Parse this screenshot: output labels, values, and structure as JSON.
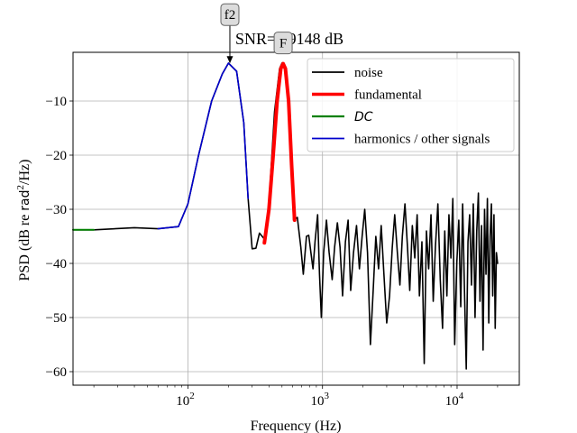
{
  "chart_data": {
    "type": "line",
    "title": "SNR=6.9148 dB",
    "xlabel": "Frequency (Hz)",
    "ylabel_prefix": "PSD (dB re ",
    "ylabel_unit": "rad",
    "ylabel_exp": "2",
    "ylabel_suffix": "/Hz)",
    "x_scale": "log",
    "xlim": [
      14,
      29000
    ],
    "ylim": [
      -62.5,
      -1
    ],
    "grid": true,
    "legend_position": "top-right",
    "x_ticks": [
      {
        "value": 100,
        "base": "10",
        "exp": "2"
      },
      {
        "value": 1000,
        "base": "10",
        "exp": "3"
      },
      {
        "value": 10000,
        "base": "10",
        "exp": "4"
      }
    ],
    "y_ticks": [
      {
        "value": -10,
        "label": "−10"
      },
      {
        "value": -20,
        "label": "−20"
      },
      {
        "value": -30,
        "label": "−30"
      },
      {
        "value": -40,
        "label": "−40"
      },
      {
        "value": -50,
        "label": "−50"
      },
      {
        "value": -60,
        "label": "−60"
      }
    ],
    "series": [
      {
        "name": "noise",
        "color": "#000000",
        "width": 1.6,
        "points": [
          [
            14,
            -33.8
          ],
          [
            20,
            -33.8
          ],
          [
            40,
            -33.4
          ],
          [
            60,
            -33.6
          ],
          [
            85,
            -33.2
          ],
          [
            100,
            -29
          ],
          [
            120,
            -20
          ],
          [
            150,
            -10
          ],
          [
            180,
            -5
          ],
          [
            200,
            -3
          ],
          [
            230,
            -4.5
          ],
          [
            260,
            -14
          ],
          [
            280,
            -28
          ],
          [
            300,
            -37.3
          ],
          [
            320,
            -37.2
          ],
          [
            340,
            -34.4
          ],
          [
            370,
            -35.5
          ],
          [
            400,
            -29
          ],
          [
            440,
            -12
          ],
          [
            480,
            -4
          ],
          [
            500,
            -3
          ],
          [
            530,
            -4.5
          ],
          [
            570,
            -14
          ],
          [
            610,
            -32
          ],
          [
            650,
            -31.5
          ],
          [
            690,
            -37
          ],
          [
            720,
            -42
          ],
          [
            760,
            -35
          ],
          [
            790,
            -34.8
          ],
          [
            820,
            -38
          ],
          [
            850,
            -41
          ],
          [
            880,
            -36
          ],
          [
            920,
            -31
          ],
          [
            950,
            -42
          ],
          [
            980,
            -50
          ],
          [
            1020,
            -38
          ],
          [
            1070,
            -32
          ],
          [
            1120,
            -38
          ],
          [
            1180,
            -43
          ],
          [
            1230,
            -37
          ],
          [
            1290,
            -32.5
          ],
          [
            1350,
            -37
          ],
          [
            1410,
            -46
          ],
          [
            1480,
            -36
          ],
          [
            1550,
            -32
          ],
          [
            1620,
            -45
          ],
          [
            1700,
            -38
          ],
          [
            1790,
            -33
          ],
          [
            1880,
            -41
          ],
          [
            1970,
            -35
          ],
          [
            2060,
            -30
          ],
          [
            2160,
            -38
          ],
          [
            2270,
            -55
          ],
          [
            2380,
            -45
          ],
          [
            2490,
            -35
          ],
          [
            2610,
            -41
          ],
          [
            2730,
            -33
          ],
          [
            2860,
            -42
          ],
          [
            3000,
            -51
          ],
          [
            3150,
            -46
          ],
          [
            3300,
            -37
          ],
          [
            3440,
            -31
          ],
          [
            3600,
            -38
          ],
          [
            3760,
            -44
          ],
          [
            3920,
            -35
          ],
          [
            4100,
            -29
          ],
          [
            4280,
            -37
          ],
          [
            4450,
            -45
          ],
          [
            4650,
            -33
          ],
          [
            4850,
            -39
          ],
          [
            5050,
            -31
          ],
          [
            5250,
            -46
          ],
          [
            5480,
            -36
          ],
          [
            5700,
            -58.5
          ],
          [
            5920,
            -34
          ],
          [
            6150,
            -41
          ],
          [
            6400,
            -31
          ],
          [
            6650,
            -47
          ],
          [
            6900,
            -37
          ],
          [
            7200,
            -29
          ],
          [
            7500,
            -43
          ],
          [
            7800,
            -52
          ],
          [
            8100,
            -34
          ],
          [
            8400,
            -46
          ],
          [
            8700,
            -31
          ],
          [
            9000,
            -39
          ],
          [
            9300,
            -28
          ],
          [
            9600,
            -55
          ],
          [
            9950,
            -40
          ],
          [
            10300,
            -32
          ],
          [
            10650,
            -48
          ],
          [
            11000,
            -29
          ],
          [
            11350,
            -45
          ],
          [
            11700,
            -59.5
          ],
          [
            12050,
            -36
          ],
          [
            12400,
            -31
          ],
          [
            12800,
            -44
          ],
          [
            13200,
            -29
          ],
          [
            13600,
            -50
          ],
          [
            14000,
            -34
          ],
          [
            14400,
            -27
          ],
          [
            14800,
            -47
          ],
          [
            15200,
            -33
          ],
          [
            15600,
            -56
          ],
          [
            16000,
            -30
          ],
          [
            16400,
            -42
          ],
          [
            16800,
            -28
          ],
          [
            17200,
            -51
          ],
          [
            17600,
            -35
          ],
          [
            18000,
            -29
          ],
          [
            18400,
            -46
          ],
          [
            18800,
            -31
          ],
          [
            19200,
            -52
          ],
          [
            19600,
            -38
          ],
          [
            20000,
            -40
          ]
        ]
      },
      {
        "name": "fundamental",
        "color": "#ff0000",
        "width": 4,
        "points": [
          [
            370,
            -36.2
          ],
          [
            400,
            -30
          ],
          [
            430,
            -20
          ],
          [
            460,
            -10
          ],
          [
            490,
            -4
          ],
          [
            510,
            -3.1
          ],
          [
            530,
            -4
          ],
          [
            560,
            -10
          ],
          [
            590,
            -22
          ],
          [
            620,
            -32
          ]
        ]
      },
      {
        "name": "DC",
        "color": "#008000",
        "width": 2,
        "points": [
          [
            14,
            -33.8
          ],
          [
            20,
            -33.8
          ]
        ]
      },
      {
        "name": "harmonics / other signals",
        "color": "#0000cc",
        "width": 1.6,
        "points": [
          [
            60,
            -33.6
          ],
          [
            85,
            -33.2
          ],
          [
            100,
            -29
          ],
          [
            120,
            -20
          ],
          [
            150,
            -10
          ],
          [
            180,
            -5
          ],
          [
            200,
            -3
          ],
          [
            230,
            -4.5
          ],
          [
            260,
            -14
          ],
          [
            280,
            -28
          ]
        ]
      }
    ],
    "annotations": [
      {
        "text": "f2",
        "x": 205,
        "y": -3.2,
        "box_dy": -44,
        "arrow": true
      },
      {
        "text": "F",
        "x": 510,
        "y": -3.1,
        "box_dy": -12,
        "arrow": false
      }
    ]
  }
}
